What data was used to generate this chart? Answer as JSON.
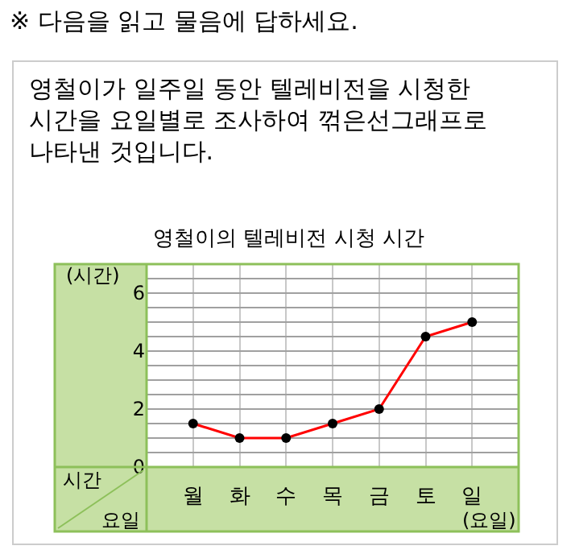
{
  "chart_data": {
    "type": "line",
    "title": "영철이의 텔레비전 시청 시간",
    "annotations": [
      "※ 다음을 읽고 물음에 답하세요.",
      "영철이가 일주일 동안 텔레비전을 시청한\n시간을 요일별로 조사하여 꺾은선그래프로\n나타낸 것입니다.",
      "시간",
      "요일"
    ],
    "ylabel": "(시간)",
    "xlabel": "(요일)",
    "categories": [
      "월",
      "화",
      "수",
      "목",
      "금",
      "토",
      "일"
    ],
    "series": [
      {
        "color": "#ff0000",
        "values": [
          1.5,
          1,
          1,
          1.5,
          2,
          4.5,
          5
        ]
      }
    ],
    "ylim": [
      0,
      7
    ],
    "yticks": [
      0,
      {
        "value": 0.5,
        "label": null
      },
      {
        "value": 1,
        "label": null
      },
      {
        "value": 1.5,
        "label": null
      },
      2,
      {
        "value": 2.5,
        "label": null
      },
      {
        "value": 3,
        "label": null
      },
      {
        "value": 3.5,
        "label": null
      },
      4,
      {
        "value": 4.5,
        "label": null
      },
      {
        "value": 5,
        "label": null
      },
      {
        "value": 5.5,
        "label": null
      },
      6,
      {
        "value": 6.5,
        "label": null
      },
      {
        "value": 7,
        "label": null
      }
    ],
    "grid": true,
    "marker": "circle",
    "line_style": "solid",
    "legend": false
  }
}
